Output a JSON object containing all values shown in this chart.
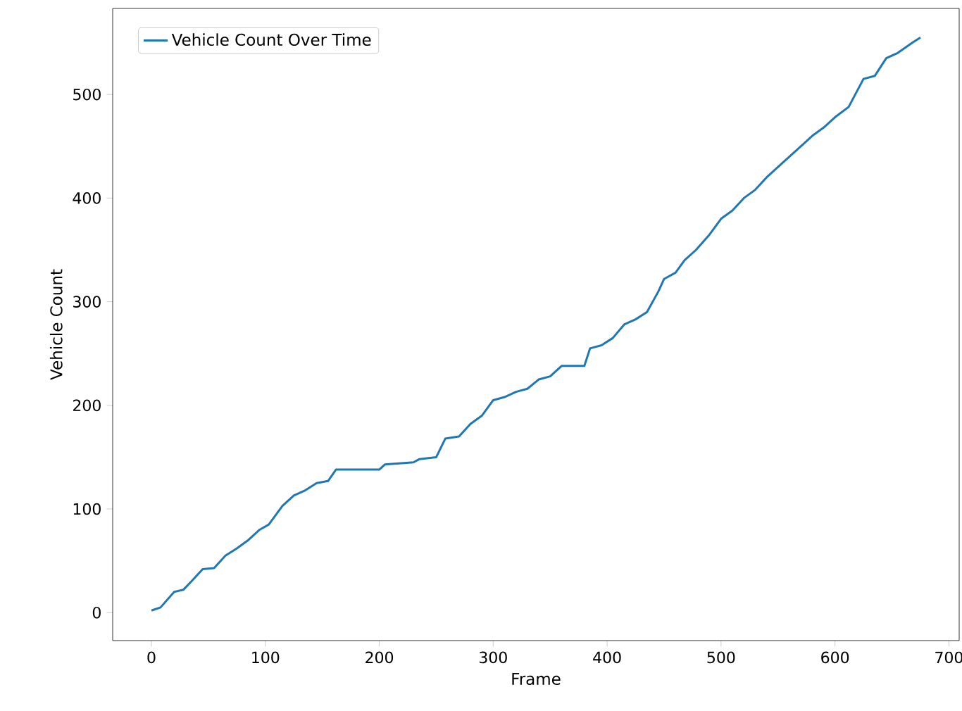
{
  "chart_data": {
    "type": "line",
    "xlabel": "Frame",
    "ylabel": "Vehicle Count",
    "legend": "top left",
    "grid": false,
    "xlim": [
      -34,
      709
    ],
    "ylim": [
      -27,
      583
    ],
    "xticks": [
      0,
      100,
      200,
      300,
      400,
      500,
      600,
      700
    ],
    "yticks": [
      0,
      100,
      200,
      300,
      400,
      500
    ],
    "series": [
      {
        "name": "Vehicle Count Over Time",
        "color": "#1f77b4",
        "x": [
          0,
          8,
          20,
          28,
          35,
          45,
          55,
          65,
          75,
          85,
          95,
          103,
          115,
          125,
          135,
          145,
          155,
          162,
          200,
          205,
          230,
          235,
          250,
          258,
          270,
          280,
          290,
          300,
          310,
          320,
          330,
          340,
          350,
          360,
          380,
          385,
          395,
          405,
          415,
          425,
          435,
          445,
          450,
          460,
          468,
          478,
          490,
          500,
          510,
          520,
          530,
          540,
          550,
          560,
          570,
          580,
          590,
          600,
          612,
          625,
          635,
          645,
          655,
          668,
          675
        ],
        "values": [
          2,
          5,
          20,
          22,
          30,
          42,
          43,
          55,
          62,
          70,
          80,
          85,
          103,
          113,
          118,
          125,
          127,
          138,
          138,
          143,
          145,
          148,
          150,
          168,
          170,
          182,
          190,
          205,
          208,
          213,
          216,
          225,
          228,
          238,
          238,
          255,
          258,
          265,
          278,
          283,
          290,
          310,
          322,
          328,
          340,
          350,
          365,
          380,
          388,
          400,
          408,
          420,
          430,
          440,
          450,
          460,
          468,
          478,
          488,
          515,
          518,
          535,
          540,
          550,
          555
        ]
      }
    ]
  }
}
